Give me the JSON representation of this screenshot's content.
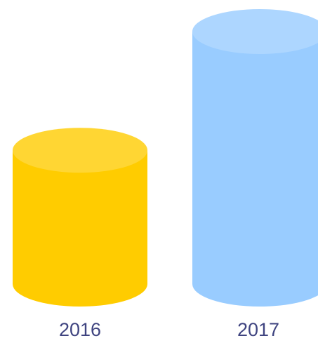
{
  "chart_data": {
    "type": "cylinder",
    "categories": [
      "2016",
      "2017"
    ],
    "values": [
      53,
      100
    ],
    "colors": [
      "#ffcc00",
      "#99ccff"
    ]
  }
}
